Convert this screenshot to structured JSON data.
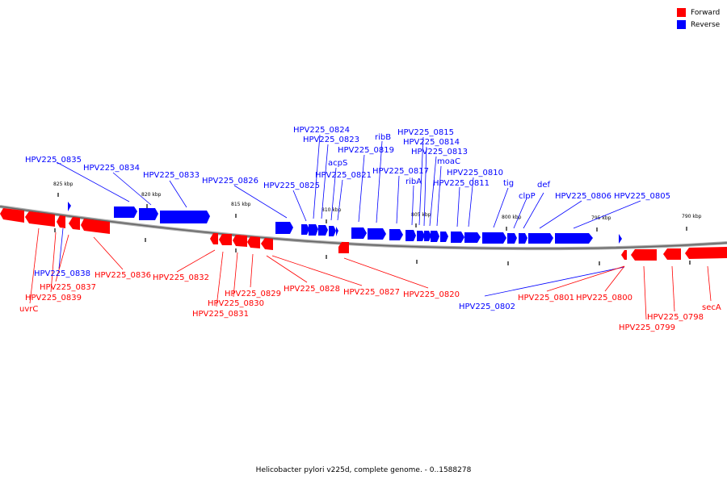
{
  "legend": {
    "forward": {
      "label": "Forward",
      "color": "#ff0000"
    },
    "reverse": {
      "label": "Reverse",
      "color": "#0000ff"
    }
  },
  "caption": "Helicobacter pylori v225d, complete genome. - 0..1588278",
  "scale_labels": [
    "825 kbp",
    "820 kbp",
    "815 kbp",
    "810 kbp",
    "805 kbp",
    "800 kbp",
    "795 kbp",
    "790 kbp"
  ],
  "reverse_genes": [
    "HPV225_0835",
    "HPV225_0834",
    "HPV225_0833",
    "HPV225_0826",
    "HPV225_0825",
    "HPV225_0824",
    "HPV225_0823",
    "acpS",
    "HPV225_0819",
    "HPV225_0821",
    "ribB",
    "HPV225_0815",
    "HPV225_0814",
    "HPV225_0813",
    "HPV225_0817",
    "moaC",
    "ribA",
    "HPV225_0810",
    "HPV225_0811",
    "tig",
    "clpP",
    "def",
    "HPV225_0806",
    "HPV225_0805",
    "HPV225_0838",
    "HPV225_0802"
  ],
  "forward_genes": [
    "uvrC",
    "HPV225_0839",
    "HPV225_0837",
    "HPV225_0836",
    "HPV225_0832",
    "HPV225_0831",
    "HPV225_0830",
    "HPV225_0829",
    "HPV225_0828",
    "HPV225_0827",
    "HPV225_0820",
    "HPV225_0801",
    "HPV225_0800",
    "HPV225_0799",
    "HPV225_0798",
    "secA"
  ]
}
